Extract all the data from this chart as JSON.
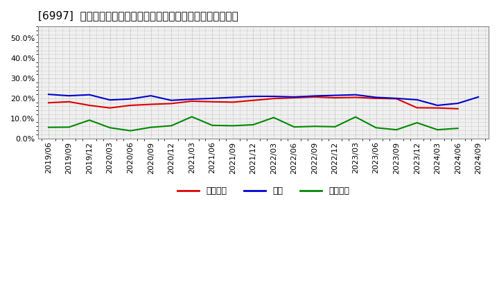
{
  "title": "[6997]  売上債権、在庫、買入債務の総資産に対する比率の推移",
  "x_labels": [
    "2019/06",
    "2019/09",
    "2019/12",
    "2020/03",
    "2020/06",
    "2020/09",
    "2020/12",
    "2021/03",
    "2021/06",
    "2021/09",
    "2021/12",
    "2022/03",
    "2022/06",
    "2022/09",
    "2022/12",
    "2023/03",
    "2023/06",
    "2023/09",
    "2023/12",
    "2024/03",
    "2024/06",
    "2024/09"
  ],
  "urikake": [
    0.178,
    0.183,
    0.165,
    0.152,
    0.165,
    0.17,
    0.174,
    0.186,
    0.183,
    0.181,
    0.19,
    0.199,
    0.203,
    0.207,
    0.203,
    0.205,
    0.2,
    0.198,
    0.153,
    0.152,
    0.148,
    null
  ],
  "zaiko": [
    0.22,
    0.213,
    0.218,
    0.192,
    0.197,
    0.213,
    0.19,
    0.196,
    0.2,
    0.205,
    0.21,
    0.21,
    0.207,
    0.212,
    0.215,
    0.218,
    0.205,
    0.2,
    0.193,
    0.165,
    0.175,
    0.207
  ],
  "kaiire": [
    0.055,
    0.056,
    0.091,
    0.053,
    0.038,
    0.055,
    0.063,
    0.108,
    0.065,
    0.063,
    0.068,
    0.104,
    0.057,
    0.06,
    0.058,
    0.107,
    0.053,
    0.043,
    0.078,
    0.043,
    0.05,
    null
  ],
  "urikake_color": "#dd0000",
  "zaiko_color": "#0000cc",
  "kaiire_color": "#008800",
  "background_color": "#ffffff",
  "plot_bg_color": "#f0f0f0",
  "grid_color": "#999999",
  "ylim": [
    0.0,
    0.56
  ],
  "yticks": [
    0.0,
    0.1,
    0.2,
    0.3,
    0.4,
    0.5
  ],
  "legend_labels": [
    "売上債権",
    "在庫",
    "買入債務"
  ],
  "title_fontsize": 11,
  "tick_fontsize": 8,
  "legend_fontsize": 9
}
